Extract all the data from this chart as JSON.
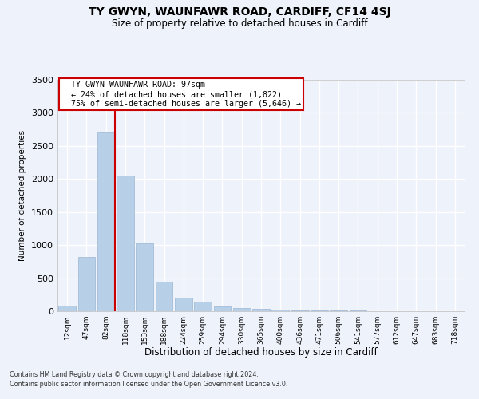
{
  "title": "TY GWYN, WAUNFAWR ROAD, CARDIFF, CF14 4SJ",
  "subtitle": "Size of property relative to detached houses in Cardiff",
  "xlabel": "Distribution of detached houses by size in Cardiff",
  "ylabel": "Number of detached properties",
  "bar_color": "#b8cfe8",
  "bar_edge_color": "#9ab5d5",
  "background_color": "#eef2fa",
  "grid_color": "#ffffff",
  "bins": [
    "12sqm",
    "47sqm",
    "82sqm",
    "118sqm",
    "153sqm",
    "188sqm",
    "224sqm",
    "259sqm",
    "294sqm",
    "330sqm",
    "365sqm",
    "400sqm",
    "436sqm",
    "471sqm",
    "506sqm",
    "541sqm",
    "577sqm",
    "612sqm",
    "647sqm",
    "683sqm",
    "718sqm"
  ],
  "values": [
    80,
    820,
    2700,
    2050,
    1020,
    450,
    210,
    145,
    70,
    50,
    35,
    25,
    18,
    12,
    10,
    8,
    5,
    4,
    3,
    2,
    1
  ],
  "annotation_text_line1": "TY GWYN WAUNFAWR ROAD: 97sqm",
  "annotation_text_line2": "← 24% of detached houses are smaller (1,822)",
  "annotation_text_line3": "75% of semi-detached houses are larger (5,646) →",
  "annotation_box_color": "#ffffff",
  "annotation_border_color": "#cc0000",
  "red_line_color": "#cc0000",
  "red_line_bin_index": 2,
  "ylim": [
    0,
    3500
  ],
  "yticks": [
    0,
    500,
    1000,
    1500,
    2000,
    2500,
    3000,
    3500
  ],
  "footer_line1": "Contains HM Land Registry data © Crown copyright and database right 2024.",
  "footer_line2": "Contains public sector information licensed under the Open Government Licence v3.0."
}
